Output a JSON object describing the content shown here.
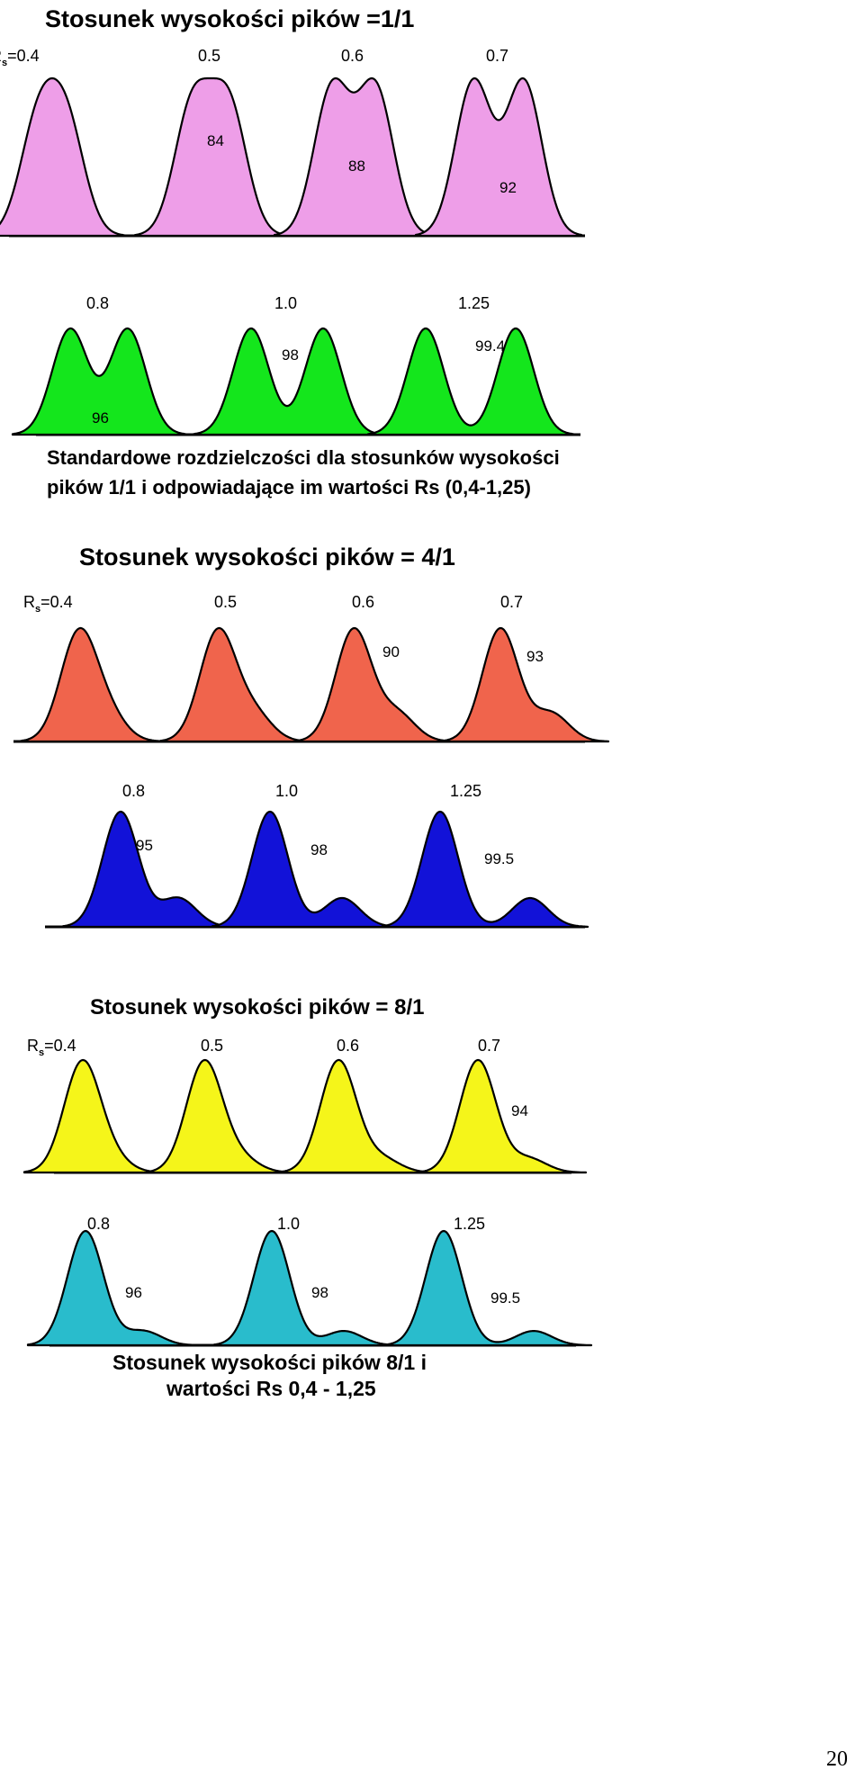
{
  "page_number": "20",
  "colors": {
    "pink": "#ee9ee8",
    "green": "#14e61c",
    "red": "#f0644c",
    "blue": "#1212d8",
    "yellow": "#f5f51a",
    "cyan": "#29bccc",
    "outline": "#000000"
  },
  "sections": [
    {
      "title": "Stosunek wysokości pików =1/1",
      "rs_prefix": "R",
      "rs_sub": "s",
      "rows": [
        {
          "color_key": "pink",
          "peaks": [
            {
              "rs": "0.4",
              "ratio": 1,
              "valley_label": ""
            },
            {
              "rs": "0.5",
              "ratio": 1,
              "valley_label": "84"
            },
            {
              "rs": "0.6",
              "ratio": 1,
              "valley_label": "88"
            },
            {
              "rs": "0.7",
              "ratio": 1,
              "valley_label": "92"
            }
          ]
        },
        {
          "color_key": "green",
          "peaks": [
            {
              "rs": "0.8",
              "ratio": 1,
              "valley_label": "96"
            },
            {
              "rs": "1.0",
              "ratio": 1,
              "valley_label": "98"
            },
            {
              "rs": "1.25",
              "ratio": 1,
              "valley_label": "99.4"
            }
          ]
        }
      ],
      "caption": [
        "Standardowe rozdzielczości dla stosunków wysokości",
        "pików 1/1 i odpowiadające im wartości Rs (0,4-1,25)"
      ]
    },
    {
      "title": "Stosunek wysokości pików = 4/1",
      "rs_prefix": "R",
      "rs_sub": "s",
      "rows": [
        {
          "color_key": "red",
          "peaks": [
            {
              "rs": "0.4",
              "ratio": 4,
              "valley_label": ""
            },
            {
              "rs": "0.5",
              "ratio": 4,
              "valley_label": ""
            },
            {
              "rs": "0.6",
              "ratio": 4,
              "valley_label": "90"
            },
            {
              "rs": "0.7",
              "ratio": 4,
              "valley_label": "93"
            }
          ]
        },
        {
          "color_key": "blue",
          "peaks": [
            {
              "rs": "0.8",
              "ratio": 4,
              "valley_label": "95"
            },
            {
              "rs": "1.0",
              "ratio": 4,
              "valley_label": "98"
            },
            {
              "rs": "1.25",
              "ratio": 4,
              "valley_label": "99.5"
            }
          ]
        }
      ],
      "caption": []
    },
    {
      "title": "Stosunek wysokości pików = 8/1",
      "rs_prefix": "R",
      "rs_sub": "s",
      "rows": [
        {
          "color_key": "yellow",
          "peaks": [
            {
              "rs": "0.4",
              "ratio": 8,
              "valley_label": ""
            },
            {
              "rs": "0.5",
              "ratio": 8,
              "valley_label": ""
            },
            {
              "rs": "0.6",
              "ratio": 8,
              "valley_label": ""
            },
            {
              "rs": "0.7",
              "ratio": 8,
              "valley_label": "94"
            }
          ]
        },
        {
          "color_key": "cyan",
          "peaks": [
            {
              "rs": "0.8",
              "ratio": 8,
              "valley_label": "96"
            },
            {
              "rs": "1.0",
              "ratio": 8,
              "valley_label": "98"
            },
            {
              "rs": "1.25",
              "ratio": 8,
              "valley_label": "99.5"
            }
          ]
        }
      ],
      "caption": [
        "Stosunek wysokości pików 8/1  i",
        "wartości  Rs 0,4  - 1,25"
      ]
    }
  ]
}
